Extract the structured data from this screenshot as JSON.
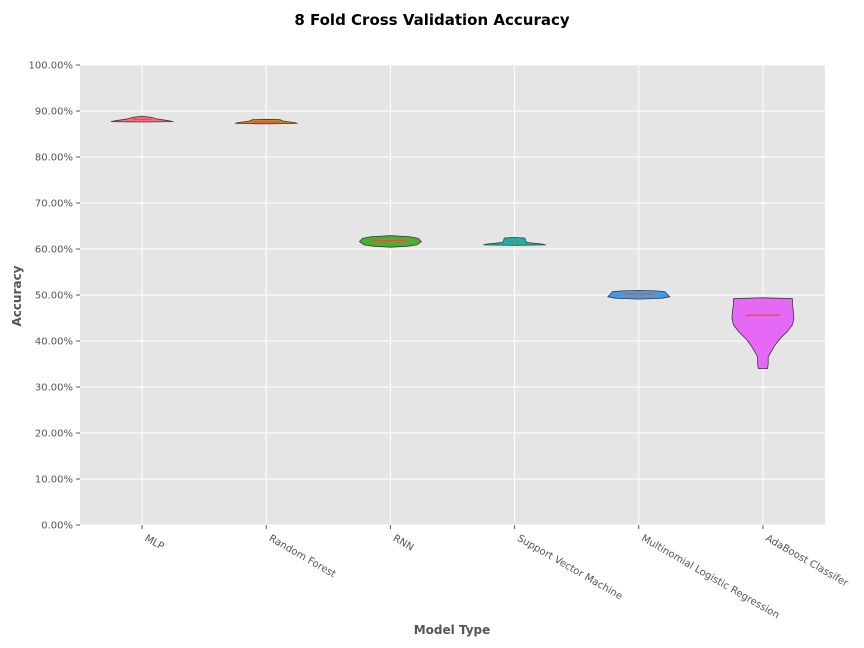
{
  "chart_data": {
    "type": "violin",
    "title": "8 Fold Cross Validation Accuracy",
    "xlabel": "Model Type",
    "ylabel": "Accuracy",
    "ylim": [
      0,
      100
    ],
    "y_ticks": [
      "0.00%",
      "10.00%",
      "20.00%",
      "30.00%",
      "40.00%",
      "50.00%",
      "60.00%",
      "70.00%",
      "80.00%",
      "90.00%",
      "100.00%"
    ],
    "grid": true,
    "legend": "none",
    "categories": [
      "MLP",
      "Random Forest",
      "RNN",
      "Support Vector Machine",
      "Multinomial Logistic Regression",
      "AdaBoost Classifer"
    ],
    "series": [
      {
        "category": "MLP",
        "color": "#ff6b81",
        "min": 87.6,
        "max": 88.9,
        "median": 88.2,
        "profile": [
          [
            87.6,
            0.0
          ],
          [
            87.7,
            1.0
          ],
          [
            87.9,
            0.85
          ],
          [
            88.3,
            0.45
          ],
          [
            88.6,
            0.3
          ],
          [
            88.9,
            0.0
          ]
        ]
      },
      {
        "category": "Random Forest",
        "color": "#c8861c",
        "min": 87.2,
        "max": 88.2,
        "median": 87.6,
        "profile": [
          [
            87.2,
            0.0
          ],
          [
            87.3,
            1.0
          ],
          [
            87.5,
            0.9
          ],
          [
            87.8,
            0.55
          ],
          [
            88.1,
            0.45
          ],
          [
            88.2,
            0.0
          ]
        ]
      },
      {
        "category": "RNN",
        "color": "#4cae32",
        "min": 60.4,
        "max": 62.9,
        "median": 61.8,
        "profile": [
          [
            60.4,
            0.0
          ],
          [
            60.6,
            0.55
          ],
          [
            60.9,
            0.85
          ],
          [
            61.6,
            1.0
          ],
          [
            62.3,
            0.9
          ],
          [
            62.7,
            0.6
          ],
          [
            62.9,
            0.0
          ]
        ]
      },
      {
        "category": "Support Vector Machine",
        "color": "#1fb1a9",
        "min": 60.8,
        "max": 62.5,
        "median": 61.6,
        "profile": [
          [
            60.8,
            0.0
          ],
          [
            60.9,
            1.0
          ],
          [
            61.1,
            0.85
          ],
          [
            61.4,
            0.45
          ],
          [
            61.6,
            0.35
          ],
          [
            62.0,
            0.35
          ],
          [
            62.4,
            0.33
          ],
          [
            62.5,
            0.0
          ]
        ]
      },
      {
        "category": "Multinomial Logistic Regression",
        "color": "#3a9eea",
        "min": 49.1,
        "max": 51.0,
        "median": 50.2,
        "profile": [
          [
            49.1,
            0.0
          ],
          [
            49.3,
            0.75
          ],
          [
            49.6,
            1.0
          ],
          [
            50.3,
            0.9
          ],
          [
            50.7,
            0.85
          ],
          [
            50.9,
            0.55
          ],
          [
            51.0,
            0.0
          ]
        ]
      },
      {
        "category": "AdaBoost Classifer",
        "color": "#e669f5",
        "min": 34.0,
        "max": 49.4,
        "median": 45.6,
        "profile": [
          [
            34.0,
            0.15
          ],
          [
            35.0,
            0.17
          ],
          [
            36.5,
            0.17
          ],
          [
            37.5,
            0.25
          ],
          [
            39.0,
            0.38
          ],
          [
            40.5,
            0.55
          ],
          [
            42.0,
            0.78
          ],
          [
            43.5,
            0.95
          ],
          [
            45.0,
            1.0
          ],
          [
            46.5,
            0.98
          ],
          [
            48.0,
            0.95
          ],
          [
            49.2,
            0.95
          ],
          [
            49.4,
            0.0
          ]
        ]
      }
    ],
    "median_color": "#e8523a"
  }
}
